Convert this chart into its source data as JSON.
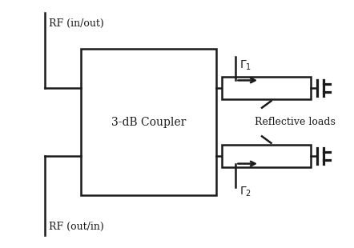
{
  "bg_color": "#ffffff",
  "line_color": "#1a1a1a",
  "figsize": [
    4.42,
    3.1
  ],
  "dpi": 100,
  "coupler_label": "3-dB Coupler",
  "rf_in_label": "RF (in/out)",
  "rf_out_label": "RF (out/in)",
  "reflective_loads_label": "Reflective loads"
}
